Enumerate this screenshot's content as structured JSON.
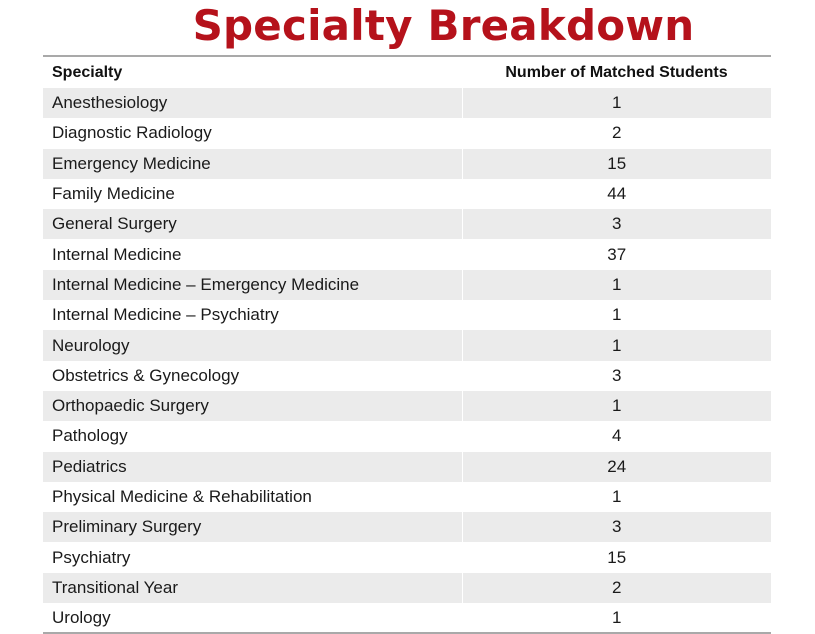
{
  "title": "Specialty Breakdown",
  "table": {
    "headers": [
      "Specialty",
      "Number of Matched Students"
    ],
    "rows": [
      {
        "specialty": "Anesthesiology",
        "count": "1"
      },
      {
        "specialty": "Diagnostic Radiology",
        "count": "2"
      },
      {
        "specialty": "Emergency Medicine",
        "count": "15"
      },
      {
        "specialty": "Family Medicine",
        "count": "44"
      },
      {
        "specialty": "General Surgery",
        "count": "3"
      },
      {
        "specialty": "Internal Medicine",
        "count": "37"
      },
      {
        "specialty": "Internal Medicine – Emergency Medicine",
        "count": "1"
      },
      {
        "specialty": "Internal Medicine – Psychiatry",
        "count": "1"
      },
      {
        "specialty": "Neurology",
        "count": "1"
      },
      {
        "specialty": "Obstetrics & Gynecology",
        "count": "3"
      },
      {
        "specialty": "Orthopaedic Surgery",
        "count": "1"
      },
      {
        "specialty": "Pathology",
        "count": "4"
      },
      {
        "specialty": "Pediatrics",
        "count": "24"
      },
      {
        "specialty": "Physical Medicine & Rehabilitation",
        "count": "1"
      },
      {
        "specialty": "Preliminary Surgery",
        "count": "3"
      },
      {
        "specialty": "Psychiatry",
        "count": "15"
      },
      {
        "specialty": "Transitional Year",
        "count": "2"
      },
      {
        "specialty": "Urology",
        "count": "1"
      }
    ]
  },
  "colors": {
    "title": "#b5121b",
    "stripe": "#ebebeb",
    "rule": "#a9a9a9"
  }
}
